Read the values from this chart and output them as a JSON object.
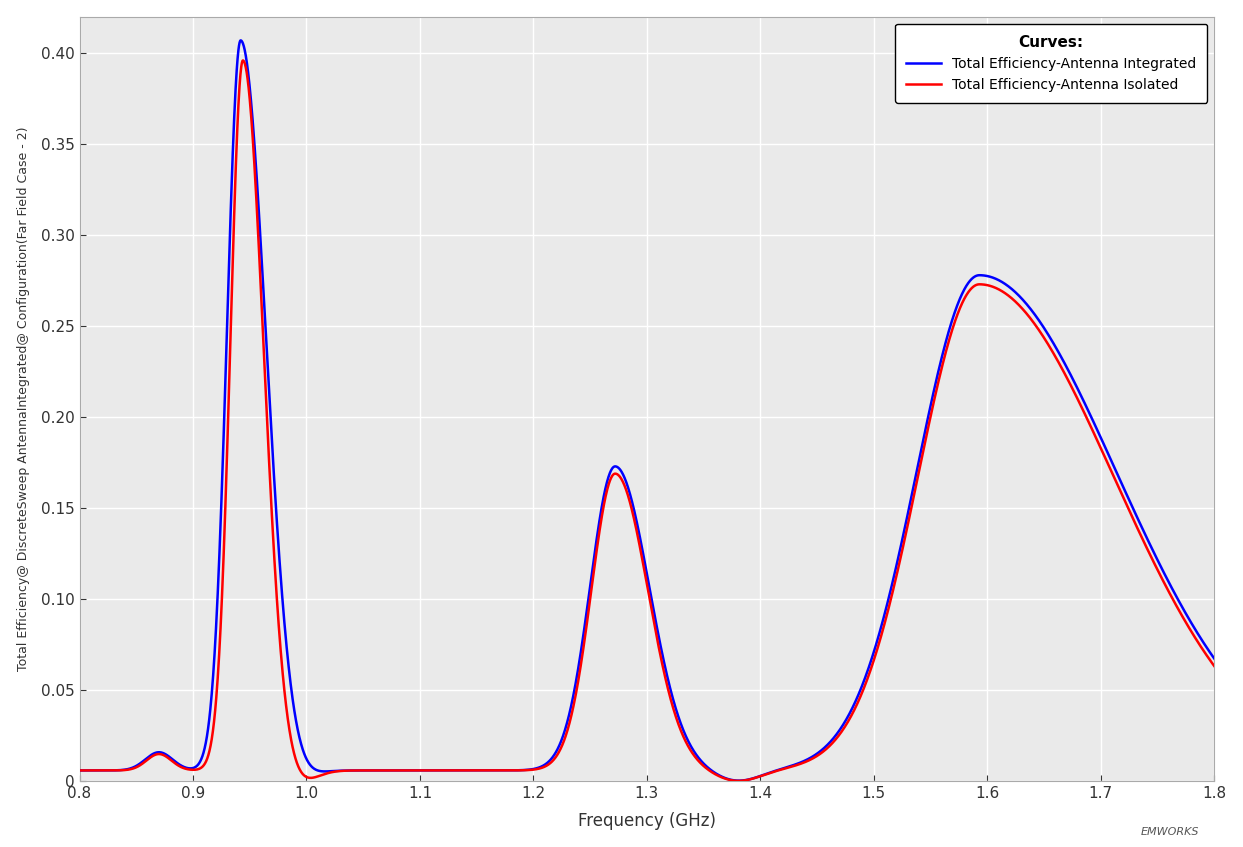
{
  "title": "",
  "xlabel": "Frequency (GHz)",
  "ylabel": "Total Efficiency@ DiscreteSweep AntennaIntegrated@ Configuration(Far Field Case - 2)",
  "xlim": [
    0.8,
    1.8
  ],
  "ylim": [
    0.0,
    0.42
  ],
  "xticks": [
    0.8,
    0.9,
    1.0,
    1.1,
    1.2,
    1.3,
    1.4,
    1.5,
    1.6,
    1.7,
    1.8
  ],
  "yticks": [
    0.0,
    0.05,
    0.1,
    0.15,
    0.2,
    0.25,
    0.3,
    0.35,
    0.4
  ],
  "blue_color": "#0000FF",
  "red_color": "#FF0000",
  "bg_color": "#EAEAEA",
  "grid_color": "#FFFFFF",
  "legend_title": "Curves:",
  "legend_label_blue": "Total Efficiency-Antenna Integrated",
  "legend_label_red": "Total Efficiency-Antenna Isolated",
  "linewidth": 1.8,
  "fig_width": 12.43,
  "fig_height": 8.47
}
